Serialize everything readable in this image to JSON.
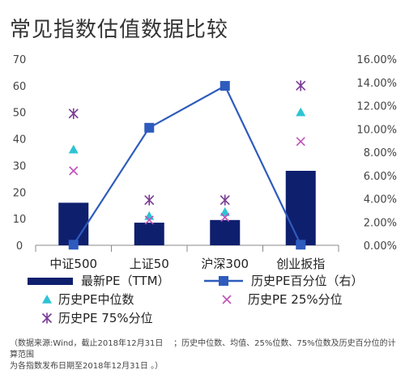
{
  "chart_data": {
    "type": "bar",
    "title": "常见指数估值数据比较",
    "categories": [
      "中证500",
      "上证50",
      "沪深300",
      "创业扳指"
    ],
    "y_left": {
      "ticks": [
        "0",
        "10",
        "20",
        "30",
        "40",
        "50",
        "60",
        "70"
      ],
      "range": [
        0,
        70
      ]
    },
    "y_right": {
      "ticks": [
        "0.00%",
        "2.00%",
        "4.00%",
        "6.00%",
        "8.00%",
        "10.00%",
        "12.00%",
        "14.00%",
        "16.00%"
      ],
      "range": [
        0,
        16
      ]
    },
    "series": [
      {
        "name": "最新PE（TTM）",
        "type": "bar",
        "axis": "left",
        "color": "#0e1f6e",
        "values": [
          16,
          8.5,
          9.5,
          28
        ]
      },
      {
        "name": "历史PE百分位（右）",
        "type": "line",
        "axis": "right",
        "color": "#2e5bbd",
        "values": [
          0.05,
          10.1,
          13.7,
          0.05
        ]
      },
      {
        "name": "历史PE中位数",
        "type": "scatter",
        "marker": "triangle",
        "axis": "left",
        "color": "#2cc4d4",
        "values": [
          36,
          11,
          12.5,
          50
        ]
      },
      {
        "name": "历史PE 25%分位",
        "type": "scatter",
        "marker": "x",
        "axis": "left",
        "color": "#c050b8",
        "values": [
          28,
          9.5,
          10.5,
          39
        ]
      },
      {
        "name": "历史PE 75%分位",
        "type": "scatter",
        "marker": "star",
        "axis": "left",
        "color": "#7a3a96",
        "values": [
          49.5,
          17,
          17,
          60
        ]
      }
    ],
    "grid": false,
    "legend_position": "bottom"
  },
  "note": {
    "line1_left": "（数据来源:Wind，截止2018年12月31日",
    "line1_right": "；历史中位数、均值、25%位数、75%位数及历史百分位的计算范围",
    "line2": "为各指数发布日期至2018年12月31日 。）"
  }
}
